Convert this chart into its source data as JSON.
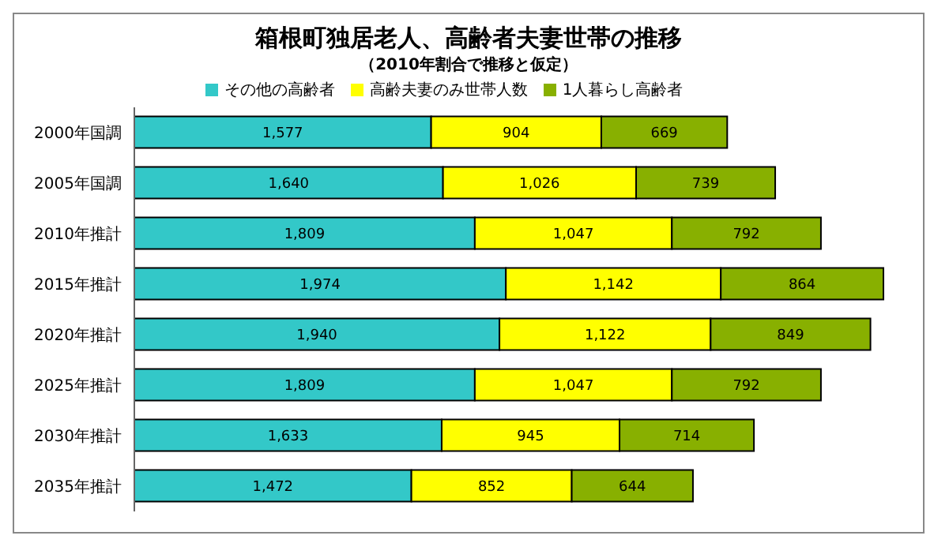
{
  "chart_data": {
    "type": "bar",
    "orientation": "horizontal",
    "stacked": true,
    "title": "箱根町独居老人、高齢者夫妻世帯の推移",
    "subtitle": "（2010年割合で推移と仮定）",
    "categories": [
      "2000年国調",
      "2005年国調",
      "2010年推計",
      "2015年推計",
      "2020年推計",
      "2025年推計",
      "2030年推計",
      "2035年推計"
    ],
    "series": [
      {
        "name": "その他の高齢者",
        "color": "#33c8c8",
        "values": [
          1577,
          1640,
          1809,
          1974,
          1940,
          1809,
          1633,
          1472
        ],
        "value_labels": [
          "1,577",
          "1,640",
          "1,809",
          "1,974",
          "1,940",
          "1,809",
          "1,633",
          "1,472"
        ]
      },
      {
        "name": "高齢夫妻のみ世帯人数",
        "color": "#ffff00",
        "values": [
          904,
          1026,
          1047,
          1142,
          1122,
          1047,
          945,
          852
        ],
        "value_labels": [
          "904",
          "1,026",
          "1,047",
          "1,142",
          "1,122",
          "1,047",
          "945",
          "852"
        ]
      },
      {
        "name": "1人暮らし高齢者",
        "color": "#88b000",
        "values": [
          669,
          739,
          792,
          864,
          849,
          792,
          714,
          644
        ],
        "value_labels": [
          "669",
          "739",
          "792",
          "864",
          "849",
          "792",
          "714",
          "644"
        ]
      }
    ],
    "legend": "top",
    "tick_labels": "y"
  }
}
